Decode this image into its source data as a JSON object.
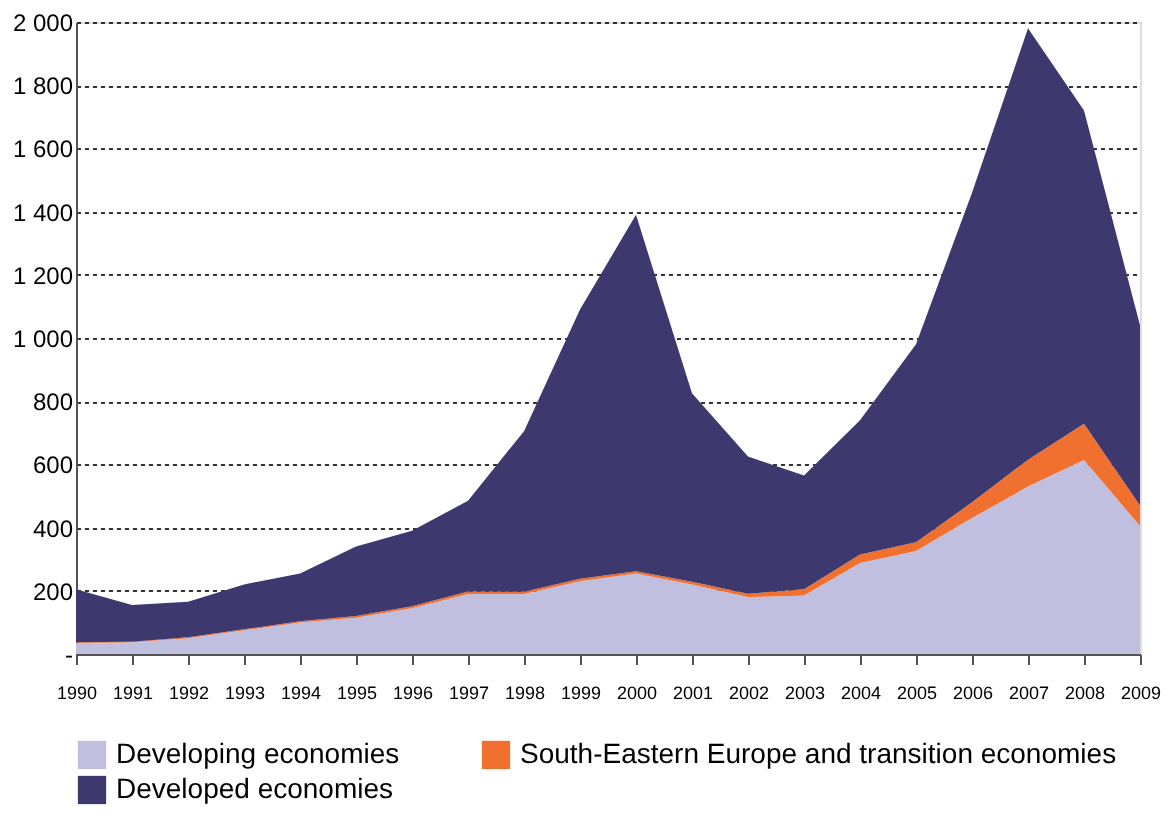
{
  "chart_data": {
    "type": "area",
    "stacked": true,
    "x": [
      1990,
      1991,
      1992,
      1993,
      1994,
      1995,
      1996,
      1997,
      1998,
      1999,
      2000,
      2001,
      2002,
      2003,
      2004,
      2005,
      2006,
      2007,
      2008,
      2009
    ],
    "series": [
      {
        "name": "Developing economies",
        "color": "#c0bfe0",
        "values": [
          35,
          37,
          50,
          75,
          100,
          115,
          145,
          190,
          190,
          230,
          255,
          220,
          180,
          185,
          288,
          326,
          430,
          530,
          614,
          405
        ]
      },
      {
        "name": "South-Eastern Europe and transition economies",
        "color": "#f07030",
        "values": [
          2,
          2,
          3,
          3,
          4,
          5,
          6,
          8,
          7,
          8,
          7,
          9,
          11,
          20,
          27,
          28,
          50,
          85,
          115,
          65
        ]
      },
      {
        "name": "Developed economies",
        "color": "#3d386e",
        "values": [
          168,
          116,
          112,
          142,
          151,
          220,
          239,
          287,
          508,
          852,
          1128,
          596,
          434,
          360,
          425,
          626,
          980,
          1365,
          991,
          570
        ]
      }
    ],
    "xlim": [
      1990,
      2009
    ],
    "xticks": [
      1990,
      1991,
      1992,
      1993,
      1994,
      1995,
      1996,
      1997,
      1998,
      1999,
      2000,
      2001,
      2002,
      2003,
      2004,
      2005,
      2006,
      2007,
      2008,
      2009
    ],
    "ylim": [
      0,
      2000
    ],
    "yticks": [
      {
        "value": 0,
        "label": "-"
      },
      200,
      400,
      600,
      800,
      {
        "value": 1000,
        "label": "1 000"
      },
      {
        "value": 1200,
        "label": "1 200"
      },
      {
        "value": 1400,
        "label": "1 400"
      },
      {
        "value": 1600,
        "label": "1 600"
      },
      {
        "value": 1800,
        "label": "1 800"
      },
      {
        "value": 2000,
        "label": "2 000"
      }
    ],
    "grid": "y",
    "legend": "bottom"
  }
}
